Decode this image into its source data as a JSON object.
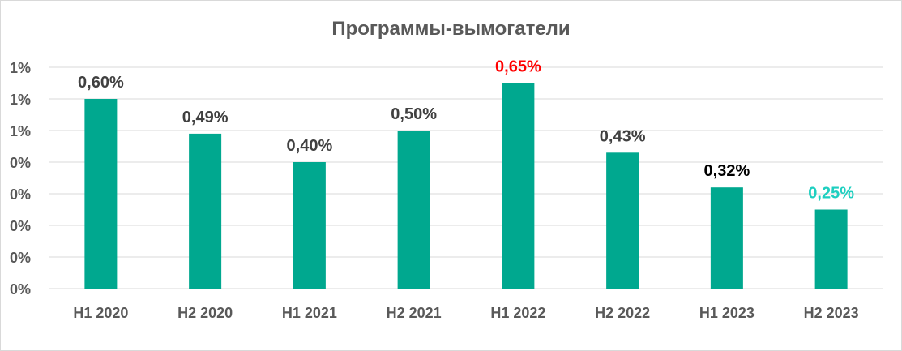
{
  "chart_data": {
    "type": "bar",
    "title": "Программы-вымогатели",
    "categories": [
      "H1 2020",
      "H2 2020",
      "H1 2021",
      "H2 2021",
      "H1 2022",
      "H2 2022",
      "H1 2023",
      "H2 2023"
    ],
    "values": [
      0.6,
      0.49,
      0.4,
      0.5,
      0.65,
      0.43,
      0.32,
      0.25
    ],
    "data_labels": [
      "0,60%",
      "0,49%",
      "0,40%",
      "0,50%",
      "0,65%",
      "0,43%",
      "0,32%",
      "0,25%"
    ],
    "data_label_colors": [
      "#404040",
      "#404040",
      "#404040",
      "#404040",
      "#ff0000",
      "#404040",
      "#000000",
      "#1ecfc0"
    ],
    "y_tick_labels": [
      "0%",
      "0%",
      "0%",
      "0%",
      "0%",
      "1%",
      "1%",
      "1%"
    ],
    "ylim": [
      0,
      0.7
    ],
    "xlabel": "",
    "ylabel": "",
    "grid": true,
    "legend": "none",
    "bar_color": "#00a88f",
    "gridline_color": "#d9d9d9"
  }
}
